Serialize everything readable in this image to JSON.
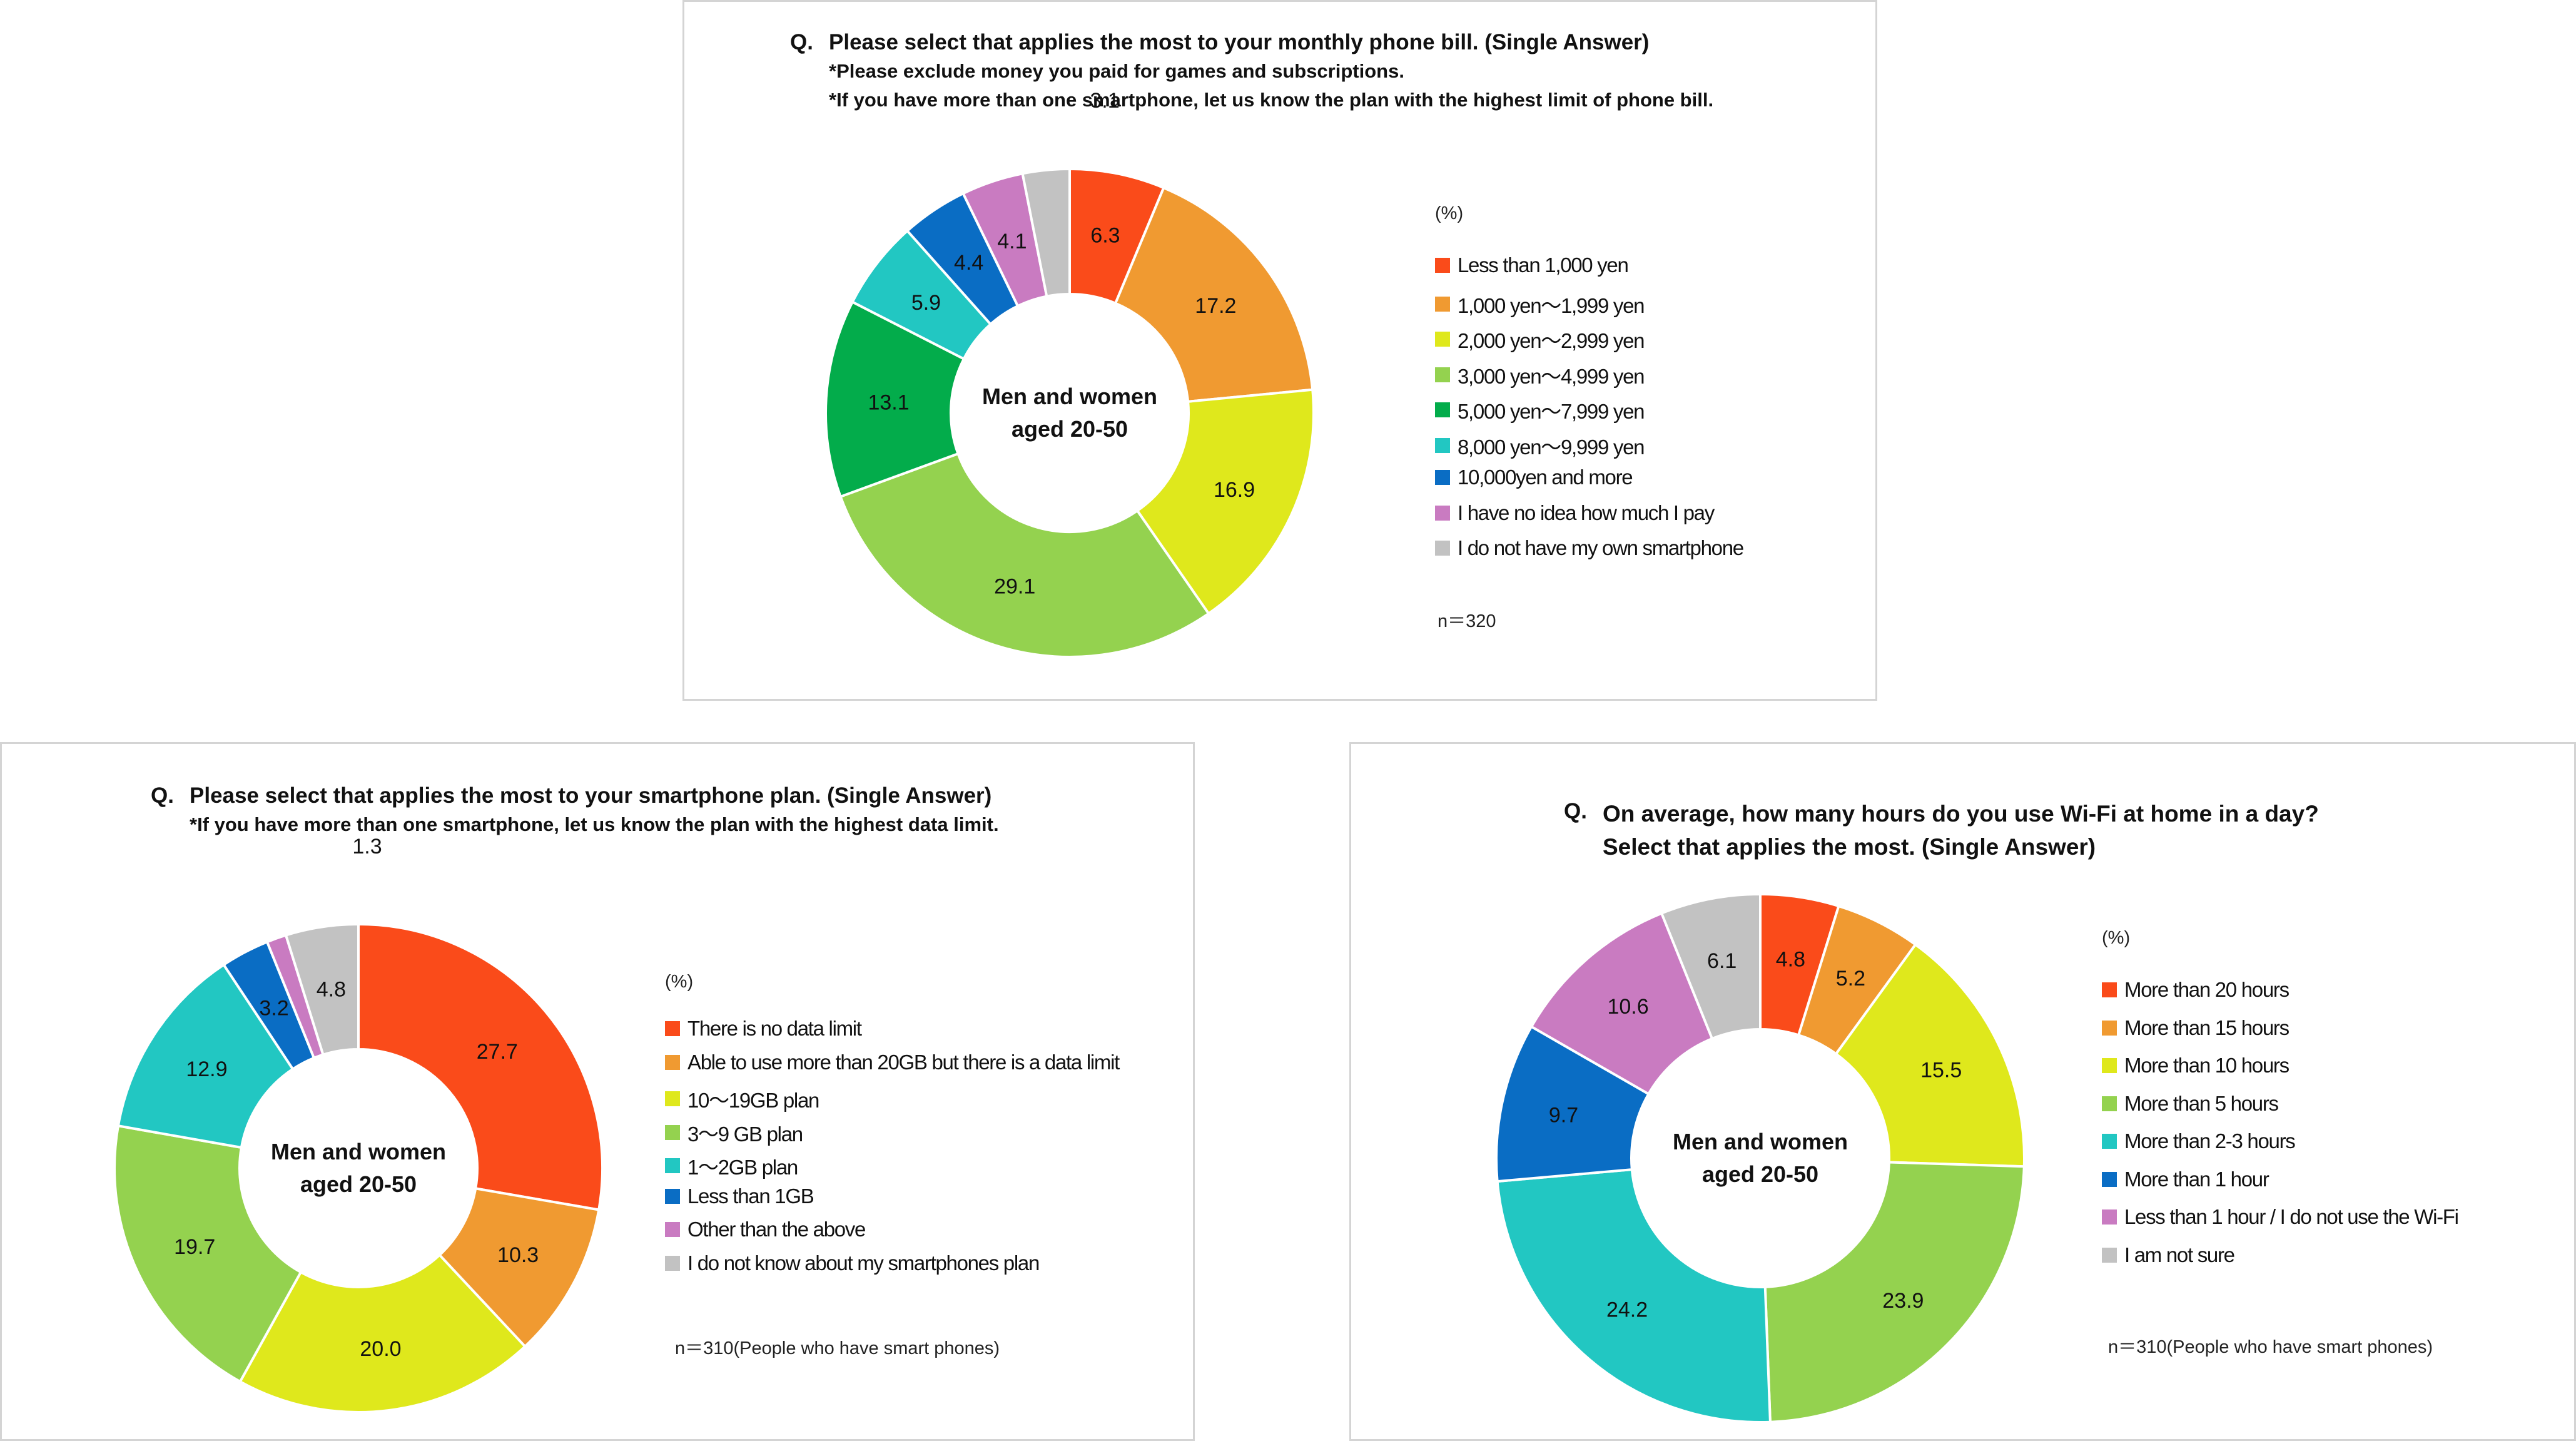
{
  "charts": [
    {
      "id": "bill",
      "question_prefix": "Q.",
      "question_lines": [
        "Please select that applies the most to your monthly phone bill. (Single Answer)",
        "*Please exclude money you paid for games and subscriptions.",
        "*If you have more than one smartphone, let us know the plan with the highest limit of phone bill."
      ],
      "center_label": [
        "Men and women",
        "aged 20-50"
      ],
      "unit": "(%)",
      "note": "n＝320"
    },
    {
      "id": "plan",
      "question_prefix": "Q.",
      "question_lines": [
        "Please select that applies the most to your smartphone plan. (Single Answer)",
        "*If you have more than one smartphone, let us know the plan with the highest data limit."
      ],
      "center_label": [
        "Men and women",
        "aged 20-50"
      ],
      "unit": "(%)",
      "note": "n＝310(People who have smart phones)"
    },
    {
      "id": "wifi",
      "question_prefix": "Q.",
      "question_lines": [
        "On average, how many hours do you use Wi-Fi at home in a day?",
        "Select that applies the most. (Single Answer)"
      ],
      "center_label": [
        "Men and women",
        "aged 20-50"
      ],
      "unit": "(%)",
      "note": "n＝310(People who have smart phones)"
    }
  ],
  "chart_data": [
    {
      "type": "pie",
      "donut": true,
      "title": "Please select that applies the most to your monthly phone bill. (Single Answer)",
      "categories": [
        "Less than 1,000 yen",
        "1,000 yen～1,999 yen",
        "2,000 yen～2,999 yen",
        "3,000 yen～4,999 yen",
        "5,000 yen～7,999 yen",
        "8,000 yen～9,999 yen",
        "10,000yen and more",
        "I have no idea how much I pay",
        "I do not have my own smartphone"
      ],
      "values": [
        6.3,
        17.2,
        16.9,
        29.1,
        13.1,
        5.9,
        4.4,
        4.1,
        3.1
      ],
      "colors": [
        "#fa4b1a",
        "#f09a31",
        "#dfe81c",
        "#94d24f",
        "#03ac4b",
        "#22c7c2",
        "#0a6dc4",
        "#c97bc1",
        "#c2c2c2"
      ],
      "legend_position": "right"
    },
    {
      "type": "pie",
      "donut": true,
      "title": "Please select that applies the most to your smartphone plan. (Single Answer)",
      "categories": [
        "There is no data limit",
        "Able to use more than 20GB but there is a data limit",
        "10～19GB plan",
        "3～9 GB plan",
        "1～2GB plan",
        "Less than 1GB",
        "Other than the above",
        "I do not know about my smartphones plan"
      ],
      "values": [
        27.7,
        10.3,
        20.0,
        19.7,
        12.9,
        3.2,
        1.3,
        4.8
      ],
      "colors": [
        "#fa4b1a",
        "#f09a31",
        "#dfe81c",
        "#94d24f",
        "#22c7c2",
        "#0a6dc4",
        "#c97bc1",
        "#c2c2c2"
      ],
      "legend_position": "right"
    },
    {
      "type": "pie",
      "donut": true,
      "title": "On average, how many hours do you use Wi-Fi at home in a day?",
      "categories": [
        "More than 20 hours",
        "More than 15 hours",
        "More than 10 hours",
        "More than 5 hours",
        "More than 2-3 hours",
        "More than 1 hour",
        "Less than 1 hour / I do not use the Wi-Fi",
        "I am not sure"
      ],
      "values": [
        4.8,
        5.2,
        15.5,
        23.9,
        24.2,
        9.7,
        10.6,
        6.1
      ],
      "colors": [
        "#fa4b1a",
        "#f09a31",
        "#dfe81c",
        "#94d24f",
        "#22c7c2",
        "#0a6dc4",
        "#c97bc1",
        "#c2c2c2"
      ],
      "legend_position": "right"
    }
  ]
}
